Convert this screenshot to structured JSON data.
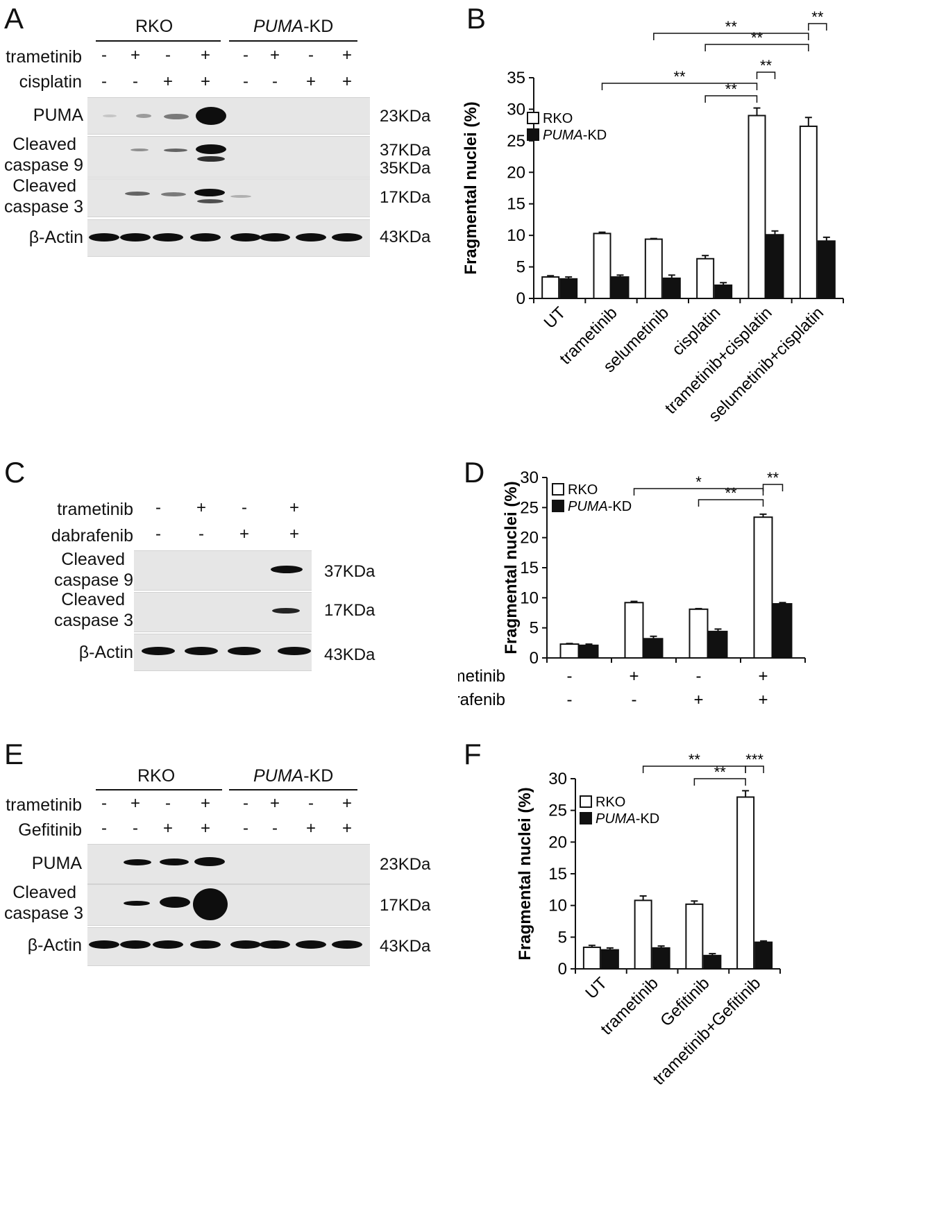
{
  "panel_A": {
    "letter": "A",
    "groups": [
      "RKO",
      "PUMA",
      "-KD"
    ],
    "treatments": [
      {
        "label": "trametinib",
        "signs": [
          "-",
          "+",
          "-",
          "+",
          "-",
          "+",
          "-",
          "+"
        ]
      },
      {
        "label": "cisplatin",
        "signs": [
          "-",
          "-",
          "+",
          "+",
          "-",
          "-",
          "+",
          "+"
        ]
      }
    ],
    "blots": [
      {
        "label_lines": [
          "PUMA"
        ],
        "sizes": [
          "23KDa"
        ]
      },
      {
        "label_lines": [
          "Cleaved",
          "caspase 9"
        ],
        "sizes": [
          "37KDa",
          "35KDa"
        ]
      },
      {
        "label_lines": [
          "Cleaved",
          "caspase 3"
        ],
        "sizes": [
          "17KDa"
        ]
      },
      {
        "label_lines": [
          "β-Actin"
        ],
        "sizes": [
          "43KDa"
        ]
      }
    ]
  },
  "panel_C": {
    "letter": "C",
    "treatments": [
      {
        "label": "trametinib",
        "signs": [
          "-",
          "+",
          "-",
          "+"
        ]
      },
      {
        "label": "dabrafenib",
        "signs": [
          "-",
          "-",
          "+",
          "+"
        ]
      }
    ],
    "blots": [
      {
        "label_lines": [
          "Cleaved",
          "caspase 9"
        ],
        "sizes": [
          "37KDa"
        ]
      },
      {
        "label_lines": [
          "Cleaved",
          "caspase 3"
        ],
        "sizes": [
          "17KDa"
        ]
      },
      {
        "label_lines": [
          "β-Actin"
        ],
        "sizes": [
          "43KDa"
        ]
      }
    ]
  },
  "panel_E": {
    "letter": "E",
    "groups": [
      "RKO",
      "PUMA",
      "-KD"
    ],
    "treatments": [
      {
        "label": "trametinib",
        "signs": [
          "-",
          "+",
          "-",
          "+",
          "-",
          "+",
          "-",
          "+"
        ]
      },
      {
        "label": "Gefitinib",
        "signs": [
          "-",
          "-",
          "+",
          "+",
          "-",
          "-",
          "+",
          "+"
        ]
      }
    ],
    "blots": [
      {
        "label_lines": [
          "PUMA"
        ],
        "sizes": [
          "23KDa"
        ]
      },
      {
        "label_lines": [
          "Cleaved",
          "caspase 3"
        ],
        "sizes": [
          "17KDa"
        ]
      },
      {
        "label_lines": [
          "β-Actin"
        ],
        "sizes": [
          "43KDa"
        ]
      }
    ]
  },
  "chart_data": [
    {
      "panel": "B",
      "type": "bar",
      "ylabel": "Fragmental nuclei (%)",
      "ylim": [
        0,
        35
      ],
      "yticks": [
        0,
        5,
        10,
        15,
        20,
        25,
        30,
        35
      ],
      "categories": [
        "UT",
        "trametinib",
        "selumetinib",
        "cisplatin",
        "trametinib+cisplatin",
        "selumetinib+cisplatin"
      ],
      "series": [
        {
          "name": "RKO",
          "italic_part": "",
          "fill": "#ffffff",
          "values": [
            3.4,
            10.3,
            9.4,
            6.3,
            29.0,
            27.3
          ],
          "errors": [
            0.2,
            0.2,
            0.1,
            0.5,
            1.2,
            1.4
          ]
        },
        {
          "name": "-KD",
          "italic_part": "PUMA",
          "fill": "#111111",
          "values": [
            3.1,
            3.4,
            3.2,
            2.1,
            10.1,
            9.1
          ],
          "errors": [
            0.3,
            0.3,
            0.5,
            0.4,
            0.6,
            0.6
          ]
        }
      ],
      "legend_position": "top-left",
      "significance": [
        {
          "from": [
            1,
            0
          ],
          "to": [
            4,
            0
          ],
          "label": "**"
        },
        {
          "from": [
            3,
            0
          ],
          "to": [
            4,
            0
          ],
          "label": "**"
        },
        {
          "from": [
            4,
            0
          ],
          "to": [
            4,
            1
          ],
          "label": "**"
        },
        {
          "from": [
            2,
            0
          ],
          "to": [
            5,
            0
          ],
          "label": "**"
        },
        {
          "from": [
            3,
            0
          ],
          "to": [
            5,
            0
          ],
          "label": "**"
        },
        {
          "from": [
            5,
            0
          ],
          "to": [
            5,
            1
          ],
          "label": "**"
        }
      ]
    },
    {
      "panel": "D",
      "type": "bar",
      "ylabel": "Fragmental nuclei (%)",
      "ylim": [
        0,
        30
      ],
      "yticks": [
        0,
        5,
        10,
        15,
        20,
        25,
        30
      ],
      "categories": [
        "",
        "",
        "",
        ""
      ],
      "condition_rows": [
        {
          "label": "trametinib",
          "signs": [
            "-",
            "+",
            "-",
            "+"
          ]
        },
        {
          "label": "dabrafenib",
          "signs": [
            "-",
            "-",
            "+",
            "+"
          ]
        }
      ],
      "series": [
        {
          "name": "RKO",
          "italic_part": "",
          "fill": "#ffffff",
          "values": [
            2.3,
            9.2,
            8.1,
            23.4
          ],
          "errors": [
            0.1,
            0.2,
            0.1,
            0.5
          ]
        },
        {
          "name": "-KD",
          "italic_part": "PUMA",
          "fill": "#111111",
          "values": [
            2.1,
            3.2,
            4.4,
            9.0
          ],
          "errors": [
            0.2,
            0.4,
            0.4,
            0.2
          ]
        }
      ],
      "legend_position": "top-left",
      "significance": [
        {
          "from": [
            1,
            0
          ],
          "to": [
            3,
            0
          ],
          "label": "*"
        },
        {
          "from": [
            2,
            0
          ],
          "to": [
            3,
            0
          ],
          "label": "**"
        },
        {
          "from": [
            3,
            0
          ],
          "to": [
            3,
            1
          ],
          "label": "**"
        }
      ]
    },
    {
      "panel": "F",
      "type": "bar",
      "ylabel": "Fragmental nuclei (%)",
      "ylim": [
        0,
        30
      ],
      "yticks": [
        0,
        5,
        10,
        15,
        20,
        25,
        30
      ],
      "categories": [
        "UT",
        "trametinib",
        "Gefitinib",
        "trametinib+Gefitinib"
      ],
      "series": [
        {
          "name": "RKO",
          "italic_part": "",
          "fill": "#ffffff",
          "values": [
            3.4,
            10.8,
            10.2,
            27.1
          ],
          "errors": [
            0.3,
            0.7,
            0.5,
            1.0
          ]
        },
        {
          "name": "-KD",
          "italic_part": "PUMA",
          "fill": "#111111",
          "values": [
            3.0,
            3.3,
            2.1,
            4.2
          ],
          "errors": [
            0.3,
            0.3,
            0.3,
            0.2
          ]
        }
      ],
      "legend_position": "top-left",
      "significance": [
        {
          "from": [
            1,
            0
          ],
          "to": [
            3,
            0
          ],
          "label": "**"
        },
        {
          "from": [
            2,
            0
          ],
          "to": [
            3,
            0
          ],
          "label": "**"
        },
        {
          "from": [
            3,
            0
          ],
          "to": [
            3,
            1
          ],
          "label": "***"
        }
      ]
    }
  ]
}
